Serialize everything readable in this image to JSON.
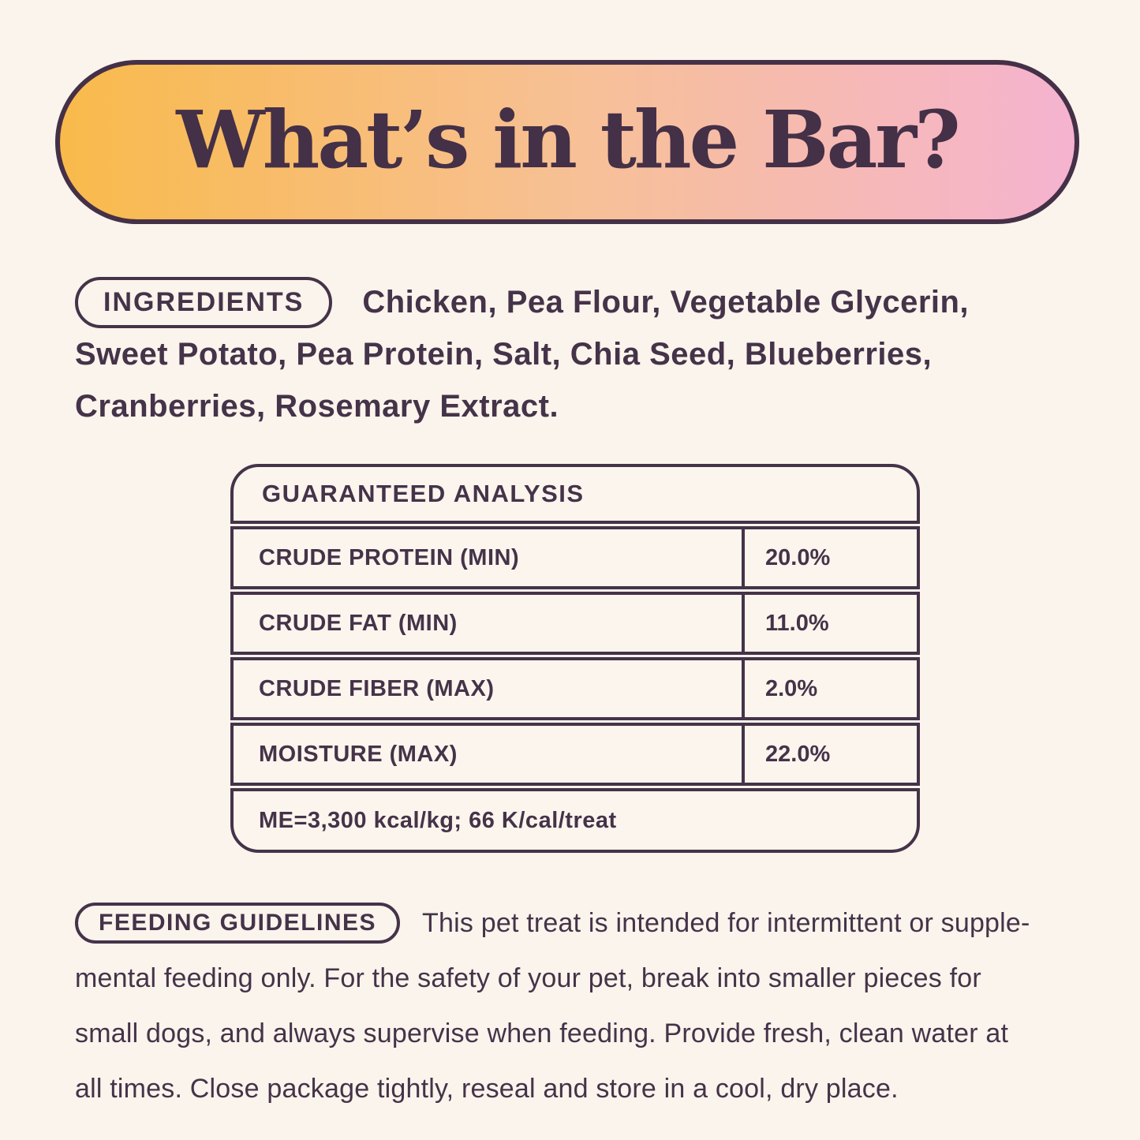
{
  "colors": {
    "background": "#faf4ec",
    "ink": "#453349",
    "banner_gradient_left": "#f9ba4b",
    "banner_gradient_mid": "#f7c097",
    "banner_gradient_right": "#f5b3d0"
  },
  "banner": {
    "title": "What’s in the Bar?"
  },
  "ingredients": {
    "label": "INGREDIENTS",
    "lines": [
      "Chicken, Pea Flour, Vegetable Glycerin,",
      "Sweet Potato, Pea Protein, Salt, Chia Seed, Blueberries,",
      "Cranberries, Rosemary Extract."
    ]
  },
  "analysis": {
    "title": "GUARANTEED ANALYSIS",
    "rows": [
      {
        "label": "CRUDE PROTEIN (MIN)",
        "value": "20.0%"
      },
      {
        "label": "CRUDE FAT (MIN)",
        "value": "11.0%"
      },
      {
        "label": "CRUDE FIBER (MAX)",
        "value": "2.0%"
      },
      {
        "label": "MOISTURE (MAX)",
        "value": "22.0%"
      }
    ],
    "footnote": "ME=3,300 kcal/kg; 66 K/cal/treat"
  },
  "feeding": {
    "label": "FEEDING GUIDELINES",
    "lines": [
      "This pet treat is intended for intermittent or supple-",
      "mental feeding only. For the safety of your pet, break into smaller pieces for",
      "small dogs, and always supervise when feeding. Provide fresh, clean water at",
      "all times. Close package tightly, reseal and store in a cool, dry place."
    ]
  }
}
